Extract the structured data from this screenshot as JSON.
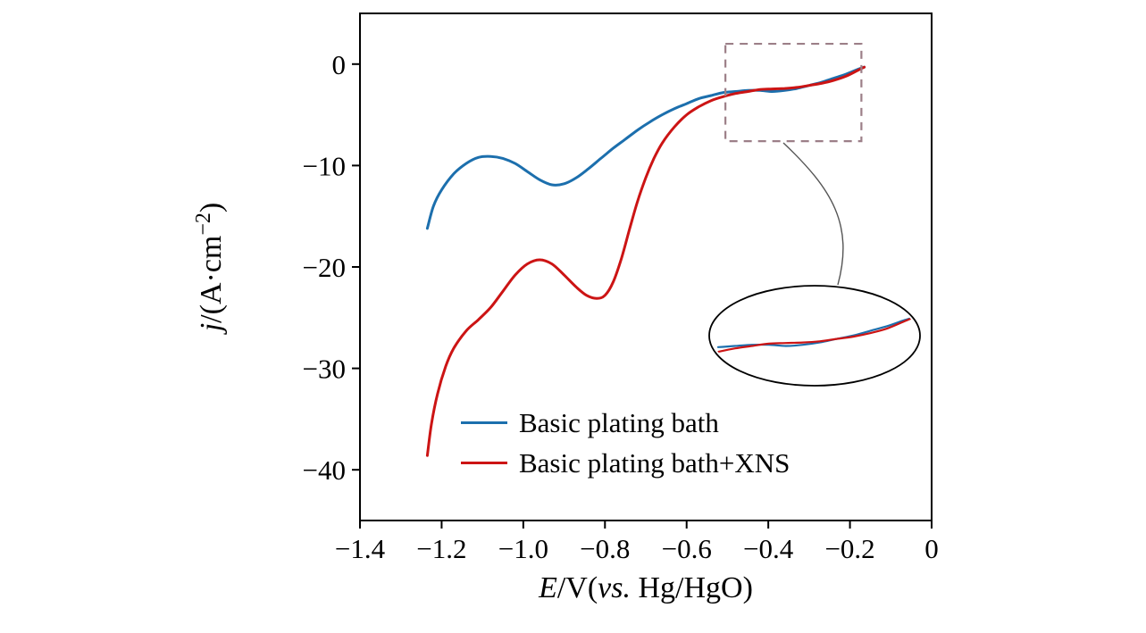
{
  "chart_data": {
    "type": "line",
    "title": "",
    "xlabel_segments": [
      {
        "text": "E",
        "italic": true
      },
      {
        "text": "/V(",
        "italic": false
      },
      {
        "text": "vs.",
        "italic": true
      },
      {
        "text": " Hg/HgO)",
        "italic": false
      }
    ],
    "ylabel_segments": [
      {
        "text": "j",
        "italic": true
      },
      {
        "text": "/(A·cm",
        "italic": false
      },
      {
        "text": "−2",
        "italic": false,
        "sup": true
      },
      {
        "text": ")",
        "italic": false
      }
    ],
    "xlim": [
      -1.4,
      0
    ],
    "ylim": [
      -45,
      5
    ],
    "xticks": [
      -1.4,
      -1.2,
      -1.0,
      -0.8,
      -0.6,
      -0.4,
      -0.2,
      0
    ],
    "xtick_labels": [
      "−1.4",
      "−1.2",
      "−1.0",
      "−0.8",
      "−0.6",
      "−0.4",
      "−0.2",
      "0"
    ],
    "yticks": [
      0,
      -10,
      -20,
      -30,
      -40
    ],
    "ytick_labels": [
      "0",
      "−10",
      "−20",
      "−30",
      "−40"
    ],
    "grid": false,
    "legend_position": "lower-center-inside",
    "series": [
      {
        "name": "Basic plating bath",
        "color": "#1c6fad",
        "x": [
          -1.235,
          -1.22,
          -1.2,
          -1.17,
          -1.14,
          -1.11,
          -1.08,
          -1.05,
          -1.02,
          -0.99,
          -0.96,
          -0.93,
          -0.9,
          -0.87,
          -0.84,
          -0.81,
          -0.78,
          -0.75,
          -0.72,
          -0.69,
          -0.66,
          -0.63,
          -0.6,
          -0.57,
          -0.54,
          -0.51,
          -0.48,
          -0.45,
          -0.42,
          -0.39,
          -0.36,
          -0.33,
          -0.3,
          -0.27,
          -0.24,
          -0.21,
          -0.18,
          -0.165
        ],
        "y": [
          -16.2,
          -14.0,
          -12.4,
          -10.8,
          -9.8,
          -9.2,
          -9.1,
          -9.3,
          -9.8,
          -10.6,
          -11.4,
          -11.9,
          -11.8,
          -11.2,
          -10.3,
          -9.3,
          -8.3,
          -7.4,
          -6.5,
          -5.7,
          -5.0,
          -4.4,
          -3.9,
          -3.4,
          -3.1,
          -2.8,
          -2.7,
          -2.6,
          -2.6,
          -2.7,
          -2.6,
          -2.4,
          -2.1,
          -1.8,
          -1.4,
          -1.0,
          -0.5,
          -0.3
        ]
      },
      {
        "name": "Basic plating bath+XNS",
        "color": "#cc1414",
        "x": [
          -1.235,
          -1.225,
          -1.21,
          -1.19,
          -1.17,
          -1.14,
          -1.11,
          -1.08,
          -1.05,
          -1.02,
          -0.99,
          -0.96,
          -0.93,
          -0.9,
          -0.87,
          -0.845,
          -0.82,
          -0.8,
          -0.78,
          -0.76,
          -0.74,
          -0.72,
          -0.7,
          -0.68,
          -0.66,
          -0.63,
          -0.6,
          -0.57,
          -0.54,
          -0.51,
          -0.48,
          -0.45,
          -0.42,
          -0.39,
          -0.36,
          -0.33,
          -0.3,
          -0.27,
          -0.24,
          -0.21,
          -0.18,
          -0.165
        ],
        "y": [
          -38.6,
          -35.5,
          -32.5,
          -29.8,
          -28.0,
          -26.3,
          -25.2,
          -24.0,
          -22.4,
          -20.8,
          -19.7,
          -19.3,
          -19.7,
          -20.8,
          -22.0,
          -22.8,
          -23.1,
          -22.8,
          -21.5,
          -19.2,
          -16.3,
          -13.5,
          -11.2,
          -9.3,
          -7.8,
          -6.2,
          -5.0,
          -4.2,
          -3.6,
          -3.2,
          -2.9,
          -2.7,
          -2.5,
          -2.45,
          -2.4,
          -2.3,
          -2.1,
          -1.9,
          -1.6,
          -1.2,
          -0.6,
          -0.3
        ]
      }
    ],
    "inset": {
      "highlight_box": {
        "x0": -0.505,
        "x1": -0.172,
        "y_top": 2.0,
        "y_bottom": -7.6
      },
      "box_color": "#9c7f88",
      "connector_color": "#555555",
      "ellipse_color": "#000000",
      "zoom_region": {
        "x0": -0.51,
        "x1": -0.165,
        "y_top": 0.0,
        "y_bottom": -3.8
      }
    }
  }
}
